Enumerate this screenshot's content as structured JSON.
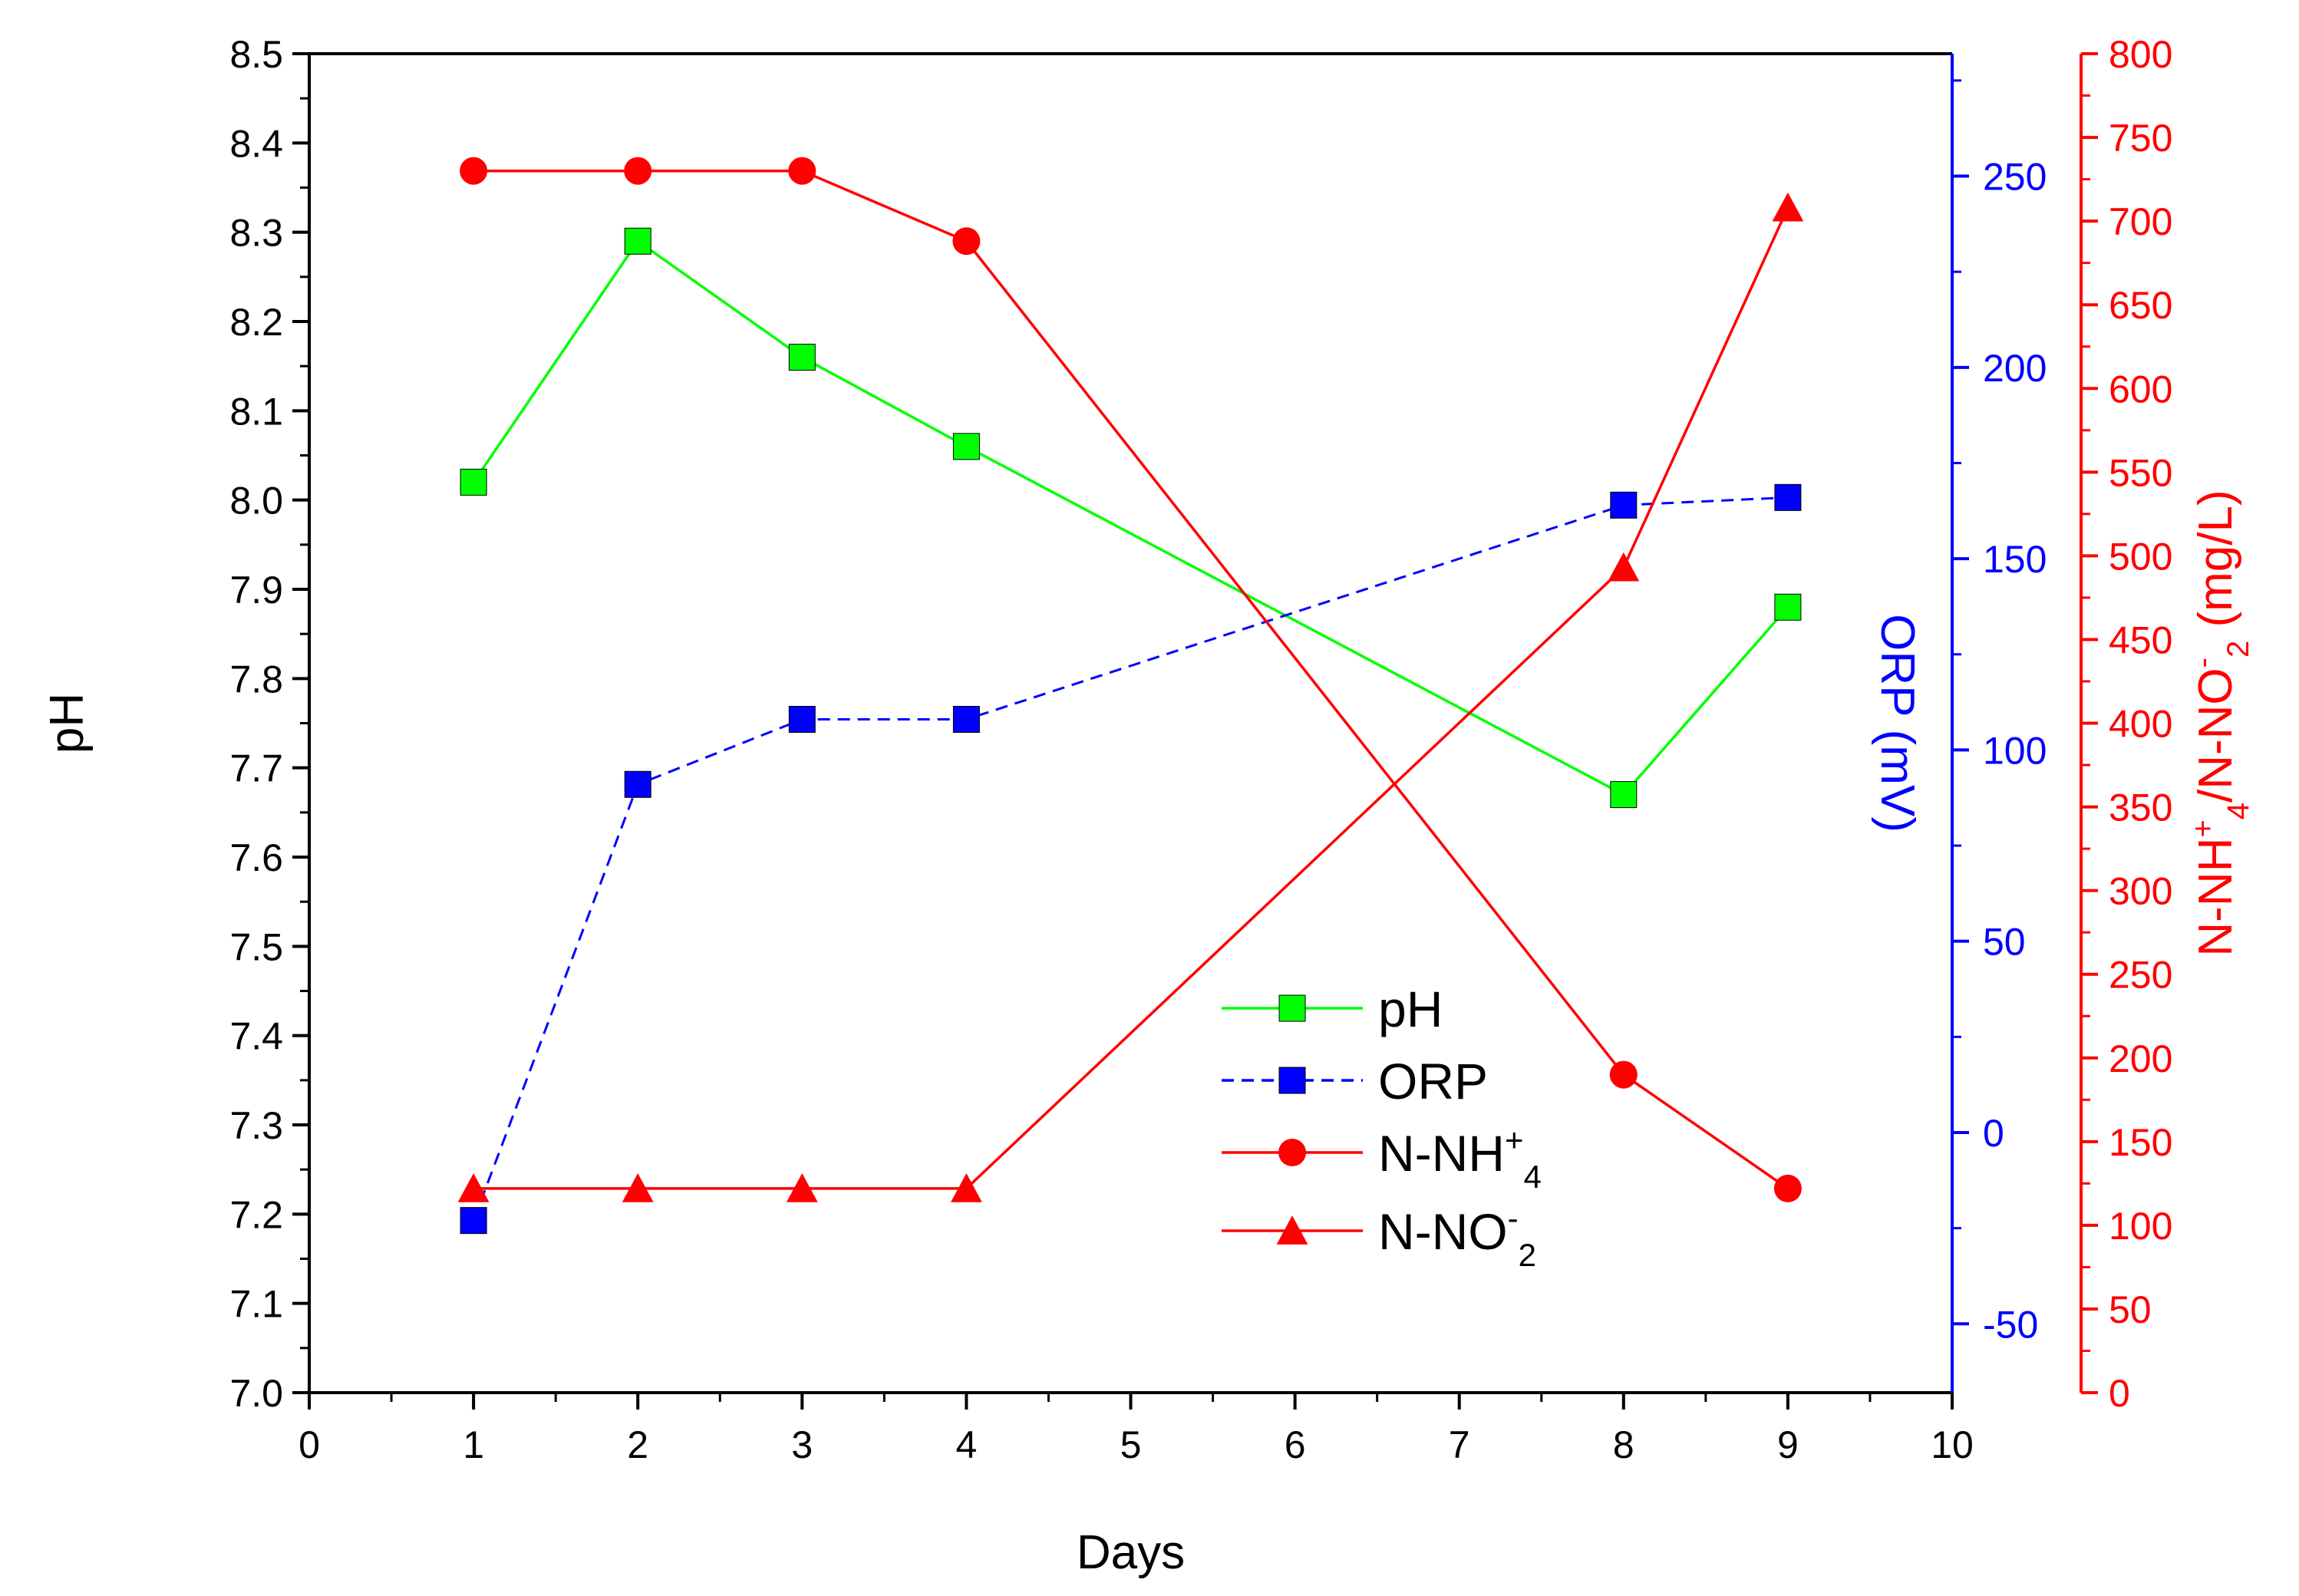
{
  "chart_data": {
    "type": "line",
    "xlabel": "Days",
    "xlim": [
      0,
      10
    ],
    "xticks": [
      "0",
      "1",
      "2",
      "3",
      "4",
      "5",
      "6",
      "7",
      "8",
      "9",
      "10"
    ],
    "axes": {
      "ph": {
        "label": "pH",
        "lim": [
          7.0,
          8.5
        ],
        "ticks": [
          "7.0",
          "7.1",
          "7.2",
          "7.3",
          "7.4",
          "7.5",
          "7.6",
          "7.7",
          "7.8",
          "7.9",
          "8.0",
          "8.1",
          "8.2",
          "8.3",
          "8.4",
          "8.5"
        ],
        "color": "#000000"
      },
      "orp": {
        "label": "ORP (mV)",
        "lim": [
          -68,
          282
        ],
        "ticks": [
          "-50",
          "0",
          "50",
          "100",
          "150",
          "200",
          "250"
        ],
        "color": "#0000ff"
      },
      "conc": {
        "label_main": "N-NH",
        "label_sup1": "+",
        "label_sub1": "4",
        "label_mid": "/N-NO",
        "label_sup2": "-",
        "label_sub2": "2",
        "label_tail": " (mg/L)",
        "lim": [
          0,
          800
        ],
        "ticks": [
          "0",
          "50",
          "100",
          "150",
          "200",
          "250",
          "300",
          "350",
          "400",
          "450",
          "500",
          "550",
          "600",
          "650",
          "700",
          "750",
          "800"
        ],
        "color": "#ff0000"
      }
    },
    "series": [
      {
        "name": "pH",
        "axis": "ph",
        "x": [
          1,
          2,
          3,
          4,
          8,
          9
        ],
        "values": [
          8.02,
          8.29,
          8.16,
          8.06,
          7.67,
          7.88
        ],
        "color": "#00ff00",
        "marker": "square",
        "dash": "solid"
      },
      {
        "name": "ORP",
        "axis": "orp",
        "x": [
          1,
          2,
          3,
          4,
          8,
          9
        ],
        "values": [
          -23,
          91,
          108,
          108,
          164,
          166
        ],
        "color": "#0000ff",
        "marker": "square",
        "dash": "dashed"
      },
      {
        "name": "N-NH4+",
        "axis": "conc",
        "x": [
          1,
          2,
          3,
          4,
          8,
          9
        ],
        "values": [
          730,
          730,
          730,
          688,
          190,
          122
        ],
        "color": "#ff0000",
        "marker": "circle",
        "dash": "solid"
      },
      {
        "name": "N-NO2-",
        "axis": "conc",
        "x": [
          1,
          2,
          3,
          4,
          8,
          9
        ],
        "values": [
          122,
          122,
          122,
          122,
          493,
          708
        ],
        "color": "#ff0000",
        "marker": "triangle",
        "dash": "solid"
      }
    ],
    "legend": {
      "placement": "lower-center",
      "entries": [
        {
          "main": "pH",
          "sup": "",
          "sub": ""
        },
        {
          "main": "ORP",
          "sup": "",
          "sub": ""
        },
        {
          "main": "N-NH",
          "sup": "+",
          "sub": "4"
        },
        {
          "main": "N-NO",
          "sup": "-",
          "sub": "2"
        }
      ]
    }
  }
}
